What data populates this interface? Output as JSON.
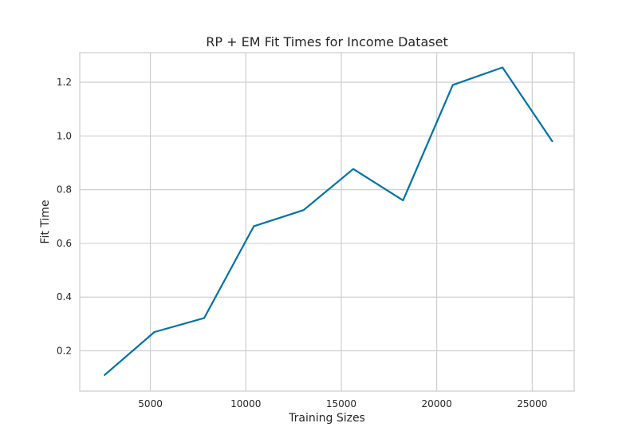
{
  "chart_data": {
    "type": "line",
    "title": "RP + EM Fit Times for Income Dataset",
    "xlabel": "Training Sizes",
    "ylabel": "Fit Time",
    "xlim": [
      1300,
      27200
    ],
    "ylim": [
      0.05,
      1.31
    ],
    "xticks": [
      5000,
      10000,
      15000,
      20000,
      25000
    ],
    "yticks": [
      0.2,
      0.4,
      0.6,
      0.8,
      1.0,
      1.2
    ],
    "ytick_labels": [
      "0.2",
      "0.4",
      "0.6",
      "0.8",
      "1.0",
      "1.2"
    ],
    "grid": true,
    "colors": {
      "series": "#0072a8",
      "grid": "#cfcfcf",
      "frame": "#cccccc"
    },
    "series": [
      {
        "x": [
          2605,
          5210,
          7815,
          10420,
          13025,
          15630,
          18235,
          20840,
          23445,
          26050
        ],
        "y": [
          0.11,
          0.27,
          0.322,
          0.664,
          0.724,
          0.877,
          0.76,
          1.19,
          1.255,
          0.98
        ]
      }
    ]
  }
}
